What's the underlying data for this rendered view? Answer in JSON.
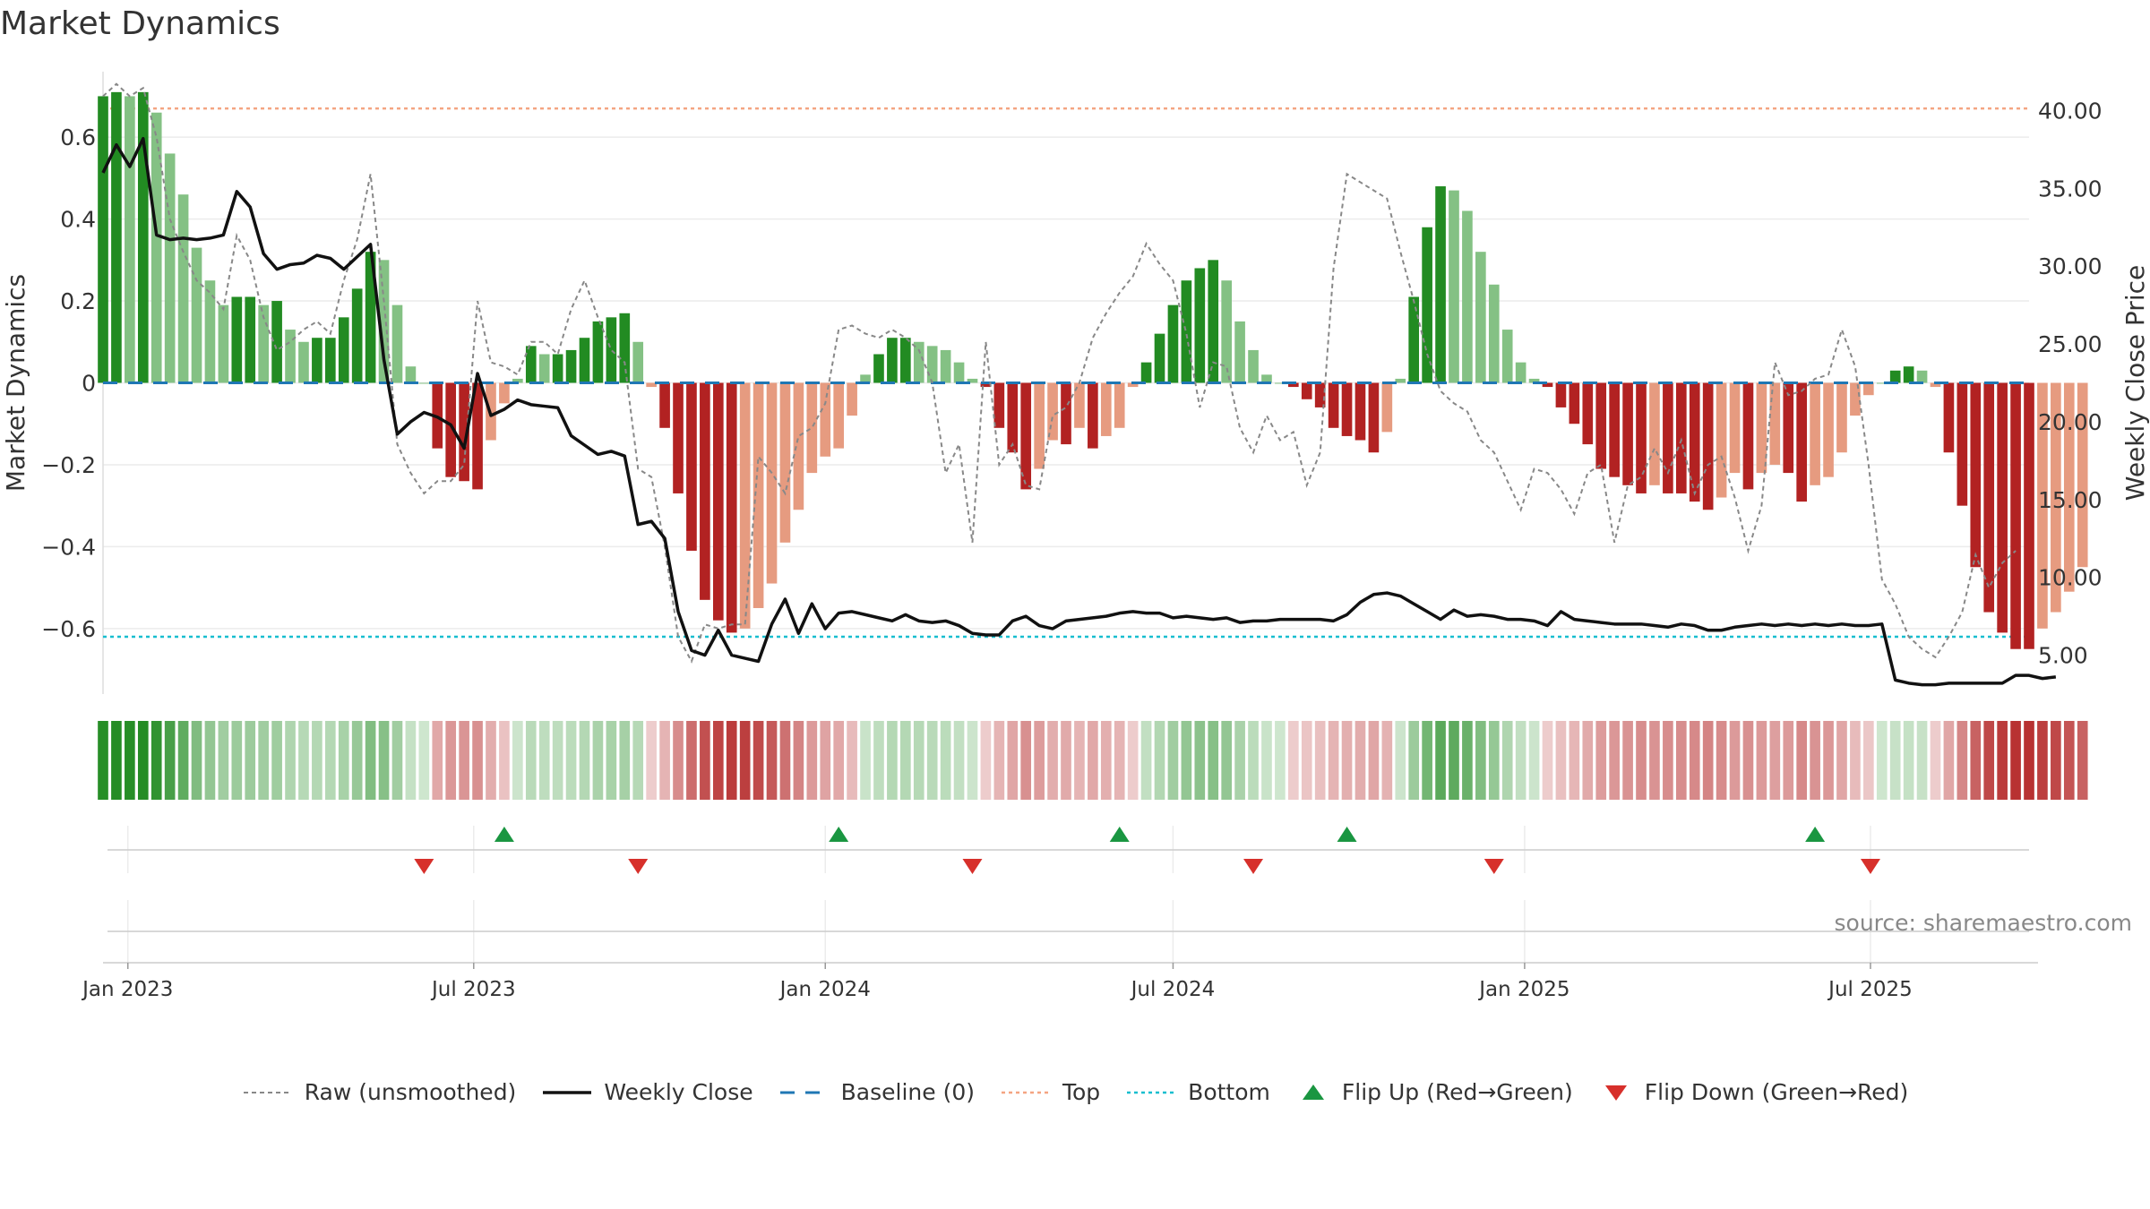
{
  "title": "Market Dynamics",
  "source": "source: sharemaestro.com",
  "colors": {
    "green_strong": "#228b22",
    "green_light": "#84c184",
    "red_strong": "#b22222",
    "red_light": "#e69b80",
    "close_line": "#111111",
    "raw_line": "#888888",
    "baseline": "#1f77b4",
    "top": "#f4a582",
    "bottom": "#17becf",
    "flip_up": "#1a9641",
    "flip_down": "#d7302b"
  },
  "chart_data": {
    "type": "bar",
    "title": "Market Dynamics",
    "ylabel": "Market Dynamics",
    "y2label": "Weekly Close Price",
    "ylim": [
      -0.76,
      0.76
    ],
    "y2lim": [
      2.5,
      42.5
    ],
    "yticks": [
      0.6,
      0.4,
      0.2,
      0,
      -0.2,
      -0.4,
      -0.6
    ],
    "yticklabels": [
      "0.6",
      "0.4",
      "0.2",
      "0",
      "−0.2",
      "−0.4",
      "−0.6"
    ],
    "y2ticks": [
      40,
      35,
      30,
      25,
      20,
      15,
      10,
      5
    ],
    "y2ticklabels": [
      "40.00",
      "35.00",
      "30.00",
      "25.00",
      "20.00",
      "15.00",
      "10.00",
      "5.00"
    ],
    "xlim": [
      "2022-12-19",
      "2025-09-22"
    ],
    "xticks": [
      "2023-01-01",
      "2023-07-01",
      "2024-01-01",
      "2024-07-01",
      "2025-01-01",
      "2025-07-01"
    ],
    "xticklabels": [
      "Jan 2023",
      "Jul 2023",
      "Jan 2024",
      "Jul 2024",
      "Jan 2025",
      "Jul 2025"
    ],
    "start_week": "2022-12-19",
    "top_level": 0.67,
    "bottom_level": -0.62,
    "grid": true,
    "legend_position": "bottom",
    "series": [
      {
        "name": "Market Dynamics",
        "kind": "bar",
        "values": [
          0.7,
          0.71,
          0.7,
          0.71,
          0.66,
          0.56,
          0.46,
          0.33,
          0.25,
          0.19,
          0.21,
          0.21,
          0.19,
          0.2,
          0.13,
          0.1,
          0.11,
          0.11,
          0.16,
          0.23,
          0.32,
          0.3,
          0.19,
          0.04,
          0.0,
          -0.16,
          -0.23,
          -0.24,
          -0.26,
          -0.14,
          -0.05,
          0.01,
          0.09,
          0.07,
          0.07,
          0.08,
          0.11,
          0.15,
          0.16,
          0.17,
          0.1,
          -0.01,
          -0.11,
          -0.27,
          -0.41,
          -0.53,
          -0.58,
          -0.61,
          -0.6,
          -0.55,
          -0.49,
          -0.39,
          -0.31,
          -0.22,
          -0.18,
          -0.16,
          -0.08,
          0.02,
          0.07,
          0.11,
          0.11,
          0.1,
          0.09,
          0.08,
          0.05,
          0.01,
          -0.01,
          -0.11,
          -0.17,
          -0.26,
          -0.21,
          -0.14,
          -0.15,
          -0.11,
          -0.16,
          -0.13,
          -0.11,
          -0.01,
          0.05,
          0.12,
          0.19,
          0.25,
          0.28,
          0.3,
          0.25,
          0.15,
          0.08,
          0.02,
          0.0,
          -0.01,
          -0.04,
          -0.06,
          -0.11,
          -0.13,
          -0.14,
          -0.17,
          -0.12,
          0.01,
          0.21,
          0.38,
          0.48,
          0.47,
          0.42,
          0.32,
          0.24,
          0.13,
          0.05,
          0.01,
          -0.01,
          -0.06,
          -0.1,
          -0.15,
          -0.21,
          -0.23,
          -0.25,
          -0.27,
          -0.25,
          -0.27,
          -0.27,
          -0.29,
          -0.31,
          -0.28,
          -0.22,
          -0.26,
          -0.22,
          -0.2,
          -0.22,
          -0.29,
          -0.25,
          -0.23,
          -0.17,
          -0.08,
          -0.03,
          0.0,
          0.03,
          0.04,
          0.03,
          -0.01,
          -0.17,
          -0.3,
          -0.45,
          -0.56,
          -0.61,
          -0.65,
          -0.65,
          -0.6,
          -0.56,
          -0.51,
          -0.45
        ]
      },
      {
        "name": "Raw (unsmoothed)",
        "kind": "line",
        "values": [
          0.7,
          0.73,
          0.7,
          0.72,
          0.6,
          0.4,
          0.32,
          0.25,
          0.22,
          0.18,
          0.36,
          0.3,
          0.16,
          0.08,
          0.1,
          0.13,
          0.15,
          0.12,
          0.25,
          0.35,
          0.51,
          0.2,
          -0.15,
          -0.22,
          -0.27,
          -0.24,
          -0.24,
          -0.2,
          0.2,
          0.05,
          0.04,
          0.02,
          0.1,
          0.1,
          0.07,
          0.18,
          0.25,
          0.16,
          0.08,
          0.05,
          -0.21,
          -0.23,
          -0.4,
          -0.62,
          -0.68,
          -0.59,
          -0.6,
          -0.59,
          -0.59,
          -0.18,
          -0.22,
          -0.27,
          -0.13,
          -0.11,
          -0.05,
          0.13,
          0.14,
          0.12,
          0.11,
          0.13,
          0.11,
          0.08,
          0.0,
          -0.22,
          -0.15,
          -0.39,
          0.1,
          -0.2,
          -0.15,
          -0.25,
          -0.26,
          -0.08,
          -0.06,
          0.0,
          0.11,
          0.17,
          0.22,
          0.26,
          0.34,
          0.29,
          0.25,
          0.12,
          -0.06,
          0.05,
          0.04,
          -0.11,
          -0.17,
          -0.08,
          -0.14,
          -0.12,
          -0.25,
          -0.17,
          0.28,
          0.51,
          0.49,
          0.47,
          0.45,
          0.32,
          0.2,
          0.07,
          -0.02,
          -0.05,
          -0.07,
          -0.14,
          -0.17,
          -0.24,
          -0.31,
          -0.21,
          -0.22,
          -0.26,
          -0.32,
          -0.22,
          -0.2,
          -0.39,
          -0.25,
          -0.23,
          -0.16,
          -0.22,
          -0.14,
          -0.27,
          -0.2,
          -0.18,
          -0.28,
          -0.41,
          -0.3,
          0.05,
          -0.03,
          -0.02,
          0.01,
          0.02,
          0.13,
          0.04,
          -0.2,
          -0.48,
          -0.54,
          -0.62,
          -0.65,
          -0.67,
          -0.62,
          -0.56,
          -0.42,
          -0.5,
          -0.44,
          -0.41
        ]
      },
      {
        "name": "Weekly Close",
        "kind": "line",
        "axis": "right",
        "values": [
          36.0,
          37.8,
          36.4,
          38.2,
          32.0,
          31.7,
          31.8,
          31.7,
          31.8,
          32.0,
          34.8,
          33.8,
          30.8,
          29.8,
          30.1,
          30.2,
          30.7,
          30.5,
          29.8,
          30.6,
          31.4,
          24.0,
          19.2,
          20.0,
          20.6,
          20.3,
          19.8,
          18.3,
          23.1,
          20.4,
          20.8,
          21.4,
          21.1,
          21.0,
          20.9,
          19.1,
          18.5,
          17.9,
          18.1,
          17.8,
          13.4,
          13.6,
          12.5,
          7.8,
          5.3,
          5.0,
          6.6,
          5.0,
          4.8,
          4.6,
          7.0,
          8.6,
          6.4,
          8.3,
          6.7,
          7.7,
          7.8,
          7.6,
          7.4,
          7.2,
          7.6,
          7.2,
          7.1,
          7.2,
          6.9,
          6.4,
          6.3,
          6.3,
          7.2,
          7.5,
          6.9,
          6.7,
          7.2,
          7.3,
          7.4,
          7.5,
          7.7,
          7.8,
          7.7,
          7.7,
          7.4,
          7.5,
          7.4,
          7.3,
          7.4,
          7.1,
          7.2,
          7.2,
          7.3,
          7.3,
          7.3,
          7.3,
          7.2,
          7.6,
          8.4,
          8.9,
          9.0,
          8.8,
          8.3,
          7.8,
          7.3,
          7.9,
          7.5,
          7.6,
          7.5,
          7.3,
          7.3,
          7.2,
          6.9,
          7.8,
          7.3,
          7.2,
          7.1,
          7.0,
          7.0,
          7.0,
          6.9,
          6.8,
          7.0,
          6.9,
          6.6,
          6.6,
          6.8,
          6.9,
          7.0,
          6.9,
          7.0,
          6.9,
          7.0,
          6.9,
          7.0,
          6.9,
          6.9,
          7.0,
          3.4,
          3.2,
          3.1,
          3.1,
          3.2,
          3.2,
          3.2,
          3.2,
          3.2,
          3.7,
          3.7,
          3.5,
          3.6
        ]
      },
      {
        "name": "Baseline (0)",
        "kind": "hline",
        "value": 0
      },
      {
        "name": "Top",
        "kind": "hline",
        "value": 0.67
      },
      {
        "name": "Bottom",
        "kind": "hline",
        "value": -0.62
      },
      {
        "name": "Flip Up (Red→Green)",
        "kind": "marker",
        "dates": [
          "2023-07-17",
          "2024-01-08",
          "2024-06-03",
          "2024-09-30",
          "2025-06-02"
        ]
      },
      {
        "name": "Flip Down (Green→Red)",
        "kind": "marker",
        "dates": [
          "2023-06-05",
          "2023-09-25",
          "2024-03-18",
          "2024-08-12",
          "2024-12-16",
          "2025-07-01"
        ]
      }
    ]
  }
}
